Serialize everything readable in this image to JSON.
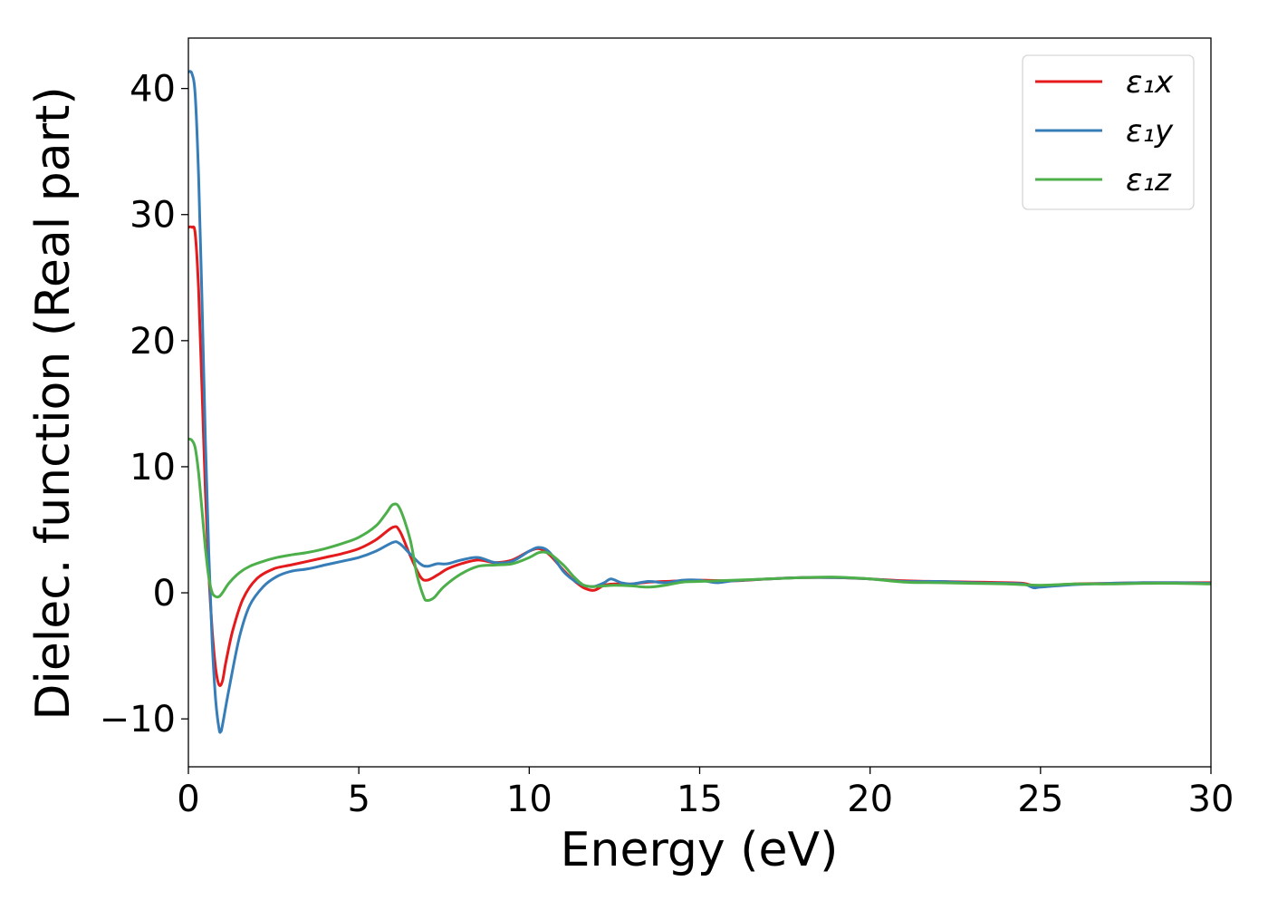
{
  "chart_data": {
    "type": "line",
    "xlabel": "Energy (eV)",
    "ylabel": "Dielec. function (Real part)",
    "xlim": [
      0,
      30
    ],
    "ylim": [
      -13.8,
      44
    ],
    "xticks": [
      0,
      5,
      10,
      15,
      20,
      25,
      30
    ],
    "yticks": [
      -10,
      0,
      10,
      20,
      30,
      40
    ],
    "ytick_labels": [
      "−10",
      "0",
      "10",
      "20",
      "30",
      "40"
    ],
    "grid": false,
    "legend_position": "top-right",
    "series": [
      {
        "name": "ε₁x",
        "color": "#e41a1c",
        "points": [
          [
            0,
            29
          ],
          [
            0.1,
            29
          ],
          [
            0.2,
            28.5
          ],
          [
            0.3,
            24
          ],
          [
            0.4,
            16
          ],
          [
            0.5,
            8
          ],
          [
            0.6,
            1.5
          ],
          [
            0.7,
            -3
          ],
          [
            0.8,
            -6
          ],
          [
            0.9,
            -7.3
          ],
          [
            1.0,
            -7
          ],
          [
            1.1,
            -5.5
          ],
          [
            1.3,
            -3
          ],
          [
            1.6,
            -0.5
          ],
          [
            2.0,
            1.1
          ],
          [
            2.5,
            1.9
          ],
          [
            3.0,
            2.2
          ],
          [
            3.5,
            2.5
          ],
          [
            4.0,
            2.8
          ],
          [
            4.5,
            3.1
          ],
          [
            5.0,
            3.5
          ],
          [
            5.5,
            4.2
          ],
          [
            6.0,
            5.2
          ],
          [
            6.2,
            4.9
          ],
          [
            6.5,
            3.0
          ],
          [
            6.8,
            1.3
          ],
          [
            7.0,
            1.0
          ],
          [
            7.3,
            1.4
          ],
          [
            7.6,
            1.9
          ],
          [
            8.0,
            2.3
          ],
          [
            8.5,
            2.6
          ],
          [
            9.0,
            2.4
          ],
          [
            9.5,
            2.6
          ],
          [
            10.0,
            3.3
          ],
          [
            10.3,
            3.5
          ],
          [
            10.6,
            3.0
          ],
          [
            11.0,
            1.8
          ],
          [
            11.3,
            1.0
          ],
          [
            11.6,
            0.4
          ],
          [
            11.9,
            0.2
          ],
          [
            12.2,
            0.6
          ],
          [
            12.5,
            0.7
          ],
          [
            13.0,
            0.7
          ],
          [
            13.5,
            0.85
          ],
          [
            14.0,
            0.9
          ],
          [
            15.0,
            1.0
          ],
          [
            16.0,
            0.95
          ],
          [
            17.0,
            1.1
          ],
          [
            18.0,
            1.2
          ],
          [
            19.0,
            1.2
          ],
          [
            20.0,
            1.1
          ],
          [
            21.0,
            0.95
          ],
          [
            22.0,
            0.9
          ],
          [
            23.0,
            0.85
          ],
          [
            24.0,
            0.8
          ],
          [
            24.5,
            0.75
          ],
          [
            25.0,
            0.5
          ],
          [
            26.0,
            0.7
          ],
          [
            27.0,
            0.75
          ],
          [
            28.0,
            0.8
          ],
          [
            29.0,
            0.8
          ],
          [
            30.0,
            0.8
          ]
        ]
      },
      {
        "name": "ε₁y",
        "color": "#377eb8",
        "points": [
          [
            0,
            41.3
          ],
          [
            0.1,
            41.2
          ],
          [
            0.2,
            39.5
          ],
          [
            0.3,
            33
          ],
          [
            0.4,
            23
          ],
          [
            0.5,
            12
          ],
          [
            0.6,
            3
          ],
          [
            0.7,
            -4
          ],
          [
            0.8,
            -8.5
          ],
          [
            0.9,
            -10.8
          ],
          [
            0.95,
            -11
          ],
          [
            1.0,
            -10.5
          ],
          [
            1.2,
            -7.5
          ],
          [
            1.5,
            -3.5
          ],
          [
            1.8,
            -1.0
          ],
          [
            2.2,
            0.5
          ],
          [
            2.6,
            1.3
          ],
          [
            3.0,
            1.7
          ],
          [
            3.5,
            1.9
          ],
          [
            4.0,
            2.2
          ],
          [
            4.5,
            2.5
          ],
          [
            5.0,
            2.8
          ],
          [
            5.5,
            3.3
          ],
          [
            6.0,
            4.0
          ],
          [
            6.2,
            3.9
          ],
          [
            6.5,
            3.1
          ],
          [
            6.8,
            2.3
          ],
          [
            7.0,
            2.1
          ],
          [
            7.3,
            2.3
          ],
          [
            7.6,
            2.3
          ],
          [
            8.0,
            2.6
          ],
          [
            8.5,
            2.8
          ],
          [
            9.0,
            2.4
          ],
          [
            9.5,
            2.5
          ],
          [
            10.0,
            3.3
          ],
          [
            10.3,
            3.6
          ],
          [
            10.6,
            3.2
          ],
          [
            11.0,
            1.7
          ],
          [
            11.3,
            1.0
          ],
          [
            11.6,
            0.6
          ],
          [
            11.9,
            0.5
          ],
          [
            12.2,
            0.8
          ],
          [
            12.4,
            1.1
          ],
          [
            12.7,
            0.8
          ],
          [
            13.0,
            0.7
          ],
          [
            13.5,
            0.9
          ],
          [
            14.0,
            0.8
          ],
          [
            14.5,
            1.0
          ],
          [
            15.0,
            1.0
          ],
          [
            15.5,
            0.8
          ],
          [
            16.0,
            0.95
          ],
          [
            17.0,
            1.1
          ],
          [
            18.0,
            1.2
          ],
          [
            19.0,
            1.2
          ],
          [
            20.0,
            1.1
          ],
          [
            21.0,
            0.9
          ],
          [
            22.0,
            0.9
          ],
          [
            23.0,
            0.8
          ],
          [
            24.0,
            0.75
          ],
          [
            24.5,
            0.7
          ],
          [
            24.8,
            0.4
          ],
          [
            25.0,
            0.45
          ],
          [
            26.0,
            0.65
          ],
          [
            27.0,
            0.75
          ],
          [
            28.0,
            0.8
          ],
          [
            29.0,
            0.8
          ],
          [
            30.0,
            0.75
          ]
        ]
      },
      {
        "name": "ε₁z",
        "color": "#4daf4a",
        "points": [
          [
            0,
            12.2
          ],
          [
            0.1,
            12.1
          ],
          [
            0.2,
            11.5
          ],
          [
            0.3,
            9.5
          ],
          [
            0.4,
            6.5
          ],
          [
            0.5,
            3.5
          ],
          [
            0.6,
            1.2
          ],
          [
            0.7,
            0
          ],
          [
            0.8,
            -0.3
          ],
          [
            0.9,
            -0.3
          ],
          [
            1.0,
            0
          ],
          [
            1.2,
            0.8
          ],
          [
            1.5,
            1.6
          ],
          [
            1.8,
            2.1
          ],
          [
            2.2,
            2.5
          ],
          [
            2.6,
            2.8
          ],
          [
            3.0,
            3.0
          ],
          [
            3.5,
            3.2
          ],
          [
            4.0,
            3.5
          ],
          [
            4.5,
            3.9
          ],
          [
            5.0,
            4.4
          ],
          [
            5.5,
            5.3
          ],
          [
            5.8,
            6.3
          ],
          [
            6.0,
            7.0
          ],
          [
            6.2,
            6.7
          ],
          [
            6.5,
            4.3
          ],
          [
            6.7,
            1.5
          ],
          [
            6.9,
            -0.3
          ],
          [
            7.0,
            -0.6
          ],
          [
            7.2,
            -0.4
          ],
          [
            7.5,
            0.5
          ],
          [
            8.0,
            1.5
          ],
          [
            8.5,
            2.1
          ],
          [
            9.0,
            2.2
          ],
          [
            9.5,
            2.3
          ],
          [
            10.0,
            2.8
          ],
          [
            10.3,
            3.2
          ],
          [
            10.6,
            3.1
          ],
          [
            11.0,
            2.2
          ],
          [
            11.3,
            1.3
          ],
          [
            11.6,
            0.6
          ],
          [
            11.9,
            0.5
          ],
          [
            12.2,
            0.55
          ],
          [
            12.5,
            0.6
          ],
          [
            13.0,
            0.55
          ],
          [
            13.5,
            0.45
          ],
          [
            14.0,
            0.6
          ],
          [
            14.5,
            0.85
          ],
          [
            15.0,
            0.9
          ],
          [
            16.0,
            1.0
          ],
          [
            17.0,
            1.1
          ],
          [
            18.0,
            1.2
          ],
          [
            19.0,
            1.25
          ],
          [
            20.0,
            1.1
          ],
          [
            21.0,
            0.85
          ],
          [
            22.0,
            0.8
          ],
          [
            23.0,
            0.75
          ],
          [
            24.0,
            0.7
          ],
          [
            25.0,
            0.6
          ],
          [
            26.0,
            0.7
          ],
          [
            27.0,
            0.7
          ],
          [
            28.0,
            0.75
          ],
          [
            29.0,
            0.75
          ],
          [
            30.0,
            0.7
          ]
        ]
      }
    ]
  }
}
